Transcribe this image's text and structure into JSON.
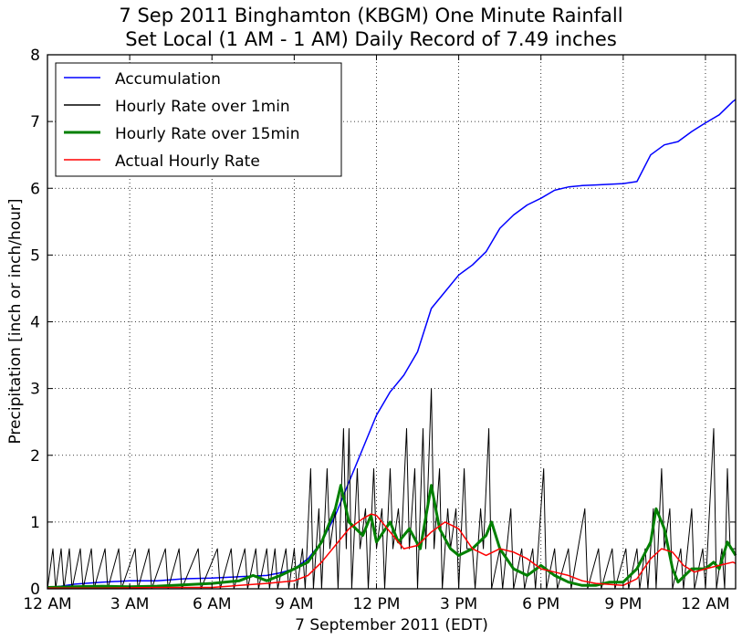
{
  "chart_data": {
    "type": "line",
    "title_lines": [
      "7 Sep 2011 Binghamton (KBGM) One Minute Rainfall",
      "Set Local (1 AM - 1 AM) Daily Record of 7.49 inches"
    ],
    "xlabel": "7 September 2011 (EDT)",
    "ylabel": "Precipitation [inch or inch/hour]",
    "xlim": [
      0,
      25.1
    ],
    "ylim": [
      0,
      8
    ],
    "x_units": "hours after 12 AM, 7 Sep 2011 (EDT)",
    "x_ticks": [
      {
        "x": 0,
        "label": "12 AM"
      },
      {
        "x": 3,
        "label": "3 AM"
      },
      {
        "x": 6,
        "label": "6 AM"
      },
      {
        "x": 9,
        "label": "9 AM"
      },
      {
        "x": 12,
        "label": "12 PM"
      },
      {
        "x": 15,
        "label": "3 PM"
      },
      {
        "x": 18,
        "label": "6 PM"
      },
      {
        "x": 21,
        "label": "9 PM"
      },
      {
        "x": 24,
        "label": "12 AM"
      }
    ],
    "y_ticks": [
      0,
      1,
      2,
      3,
      4,
      5,
      6,
      7,
      8
    ],
    "grid": true,
    "legend_position": "top-left",
    "series": [
      {
        "name": "Accumulation",
        "color": "#0000ff",
        "line_width": 1.5,
        "points": [
          [
            0,
            0.02
          ],
          [
            0.5,
            0.04
          ],
          [
            1,
            0.07
          ],
          [
            2,
            0.1
          ],
          [
            3,
            0.12
          ],
          [
            4,
            0.12
          ],
          [
            5,
            0.15
          ],
          [
            6,
            0.16
          ],
          [
            7,
            0.18
          ],
          [
            8,
            0.2
          ],
          [
            8.5,
            0.24
          ],
          [
            9,
            0.3
          ],
          [
            9.5,
            0.45
          ],
          [
            10,
            0.7
          ],
          [
            10.5,
            1.1
          ],
          [
            11,
            1.6
          ],
          [
            11.5,
            2.1
          ],
          [
            12,
            2.6
          ],
          [
            12.5,
            2.95
          ],
          [
            13,
            3.2
          ],
          [
            13.5,
            3.55
          ],
          [
            14,
            4.2
          ],
          [
            14.5,
            4.45
          ],
          [
            15,
            4.7
          ],
          [
            15.5,
            4.85
          ],
          [
            16,
            5.05
          ],
          [
            16.5,
            5.4
          ],
          [
            17,
            5.6
          ],
          [
            17.5,
            5.75
          ],
          [
            18,
            5.85
          ],
          [
            18.5,
            5.97
          ],
          [
            19,
            6.02
          ],
          [
            19.5,
            6.04
          ],
          [
            20,
            6.05
          ],
          [
            20.5,
            6.06
          ],
          [
            21,
            6.07
          ],
          [
            21.5,
            6.1
          ],
          [
            22,
            6.5
          ],
          [
            22.5,
            6.65
          ],
          [
            23,
            6.7
          ],
          [
            23.5,
            6.85
          ],
          [
            24,
            6.98
          ],
          [
            24.5,
            7.1
          ],
          [
            25,
            7.3
          ],
          [
            25.1,
            7.33
          ]
        ]
      },
      {
        "name": "Hourly Rate over 1min",
        "color": "#000000",
        "line_width": 1,
        "points": [
          [
            0,
            0
          ],
          [
            0.2,
            0.6
          ],
          [
            0.3,
            0
          ],
          [
            0.5,
            0.6
          ],
          [
            0.6,
            0
          ],
          [
            0.8,
            0.6
          ],
          [
            0.9,
            0
          ],
          [
            1.2,
            0.6
          ],
          [
            1.3,
            0
          ],
          [
            1.6,
            0.6
          ],
          [
            1.7,
            0
          ],
          [
            2.1,
            0.6
          ],
          [
            2.2,
            0
          ],
          [
            2.6,
            0.6
          ],
          [
            2.7,
            0
          ],
          [
            3.2,
            0.6
          ],
          [
            3.3,
            0
          ],
          [
            3.7,
            0.6
          ],
          [
            3.8,
            0
          ],
          [
            4.3,
            0.6
          ],
          [
            4.4,
            0
          ],
          [
            4.8,
            0.6
          ],
          [
            4.9,
            0
          ],
          [
            5.5,
            0.6
          ],
          [
            5.6,
            0
          ],
          [
            6.2,
            0.6
          ],
          [
            6.3,
            0
          ],
          [
            6.7,
            0.6
          ],
          [
            6.8,
            0
          ],
          [
            7.2,
            0.6
          ],
          [
            7.3,
            0
          ],
          [
            7.6,
            0.6
          ],
          [
            7.7,
            0
          ],
          [
            8,
            0.6
          ],
          [
            8.1,
            0
          ],
          [
            8.3,
            0.6
          ],
          [
            8.4,
            0
          ],
          [
            8.7,
            0.6
          ],
          [
            8.8,
            0
          ],
          [
            9,
            0.6
          ],
          [
            9.1,
            0
          ],
          [
            9.3,
            0.6
          ],
          [
            9.4,
            0
          ],
          [
            9.6,
            1.8
          ],
          [
            9.7,
            0
          ],
          [
            9.9,
            1.2
          ],
          [
            10,
            0
          ],
          [
            10.2,
            1.8
          ],
          [
            10.3,
            0.6
          ],
          [
            10.5,
            1.2
          ],
          [
            10.6,
            0
          ],
          [
            10.8,
            2.4
          ],
          [
            10.9,
            0.6
          ],
          [
            11,
            2.4
          ],
          [
            11.1,
            0
          ],
          [
            11.3,
            1.8
          ],
          [
            11.4,
            0.6
          ],
          [
            11.6,
            1.2
          ],
          [
            11.7,
            0
          ],
          [
            11.9,
            1.8
          ],
          [
            12,
            0.6
          ],
          [
            12.2,
            1.2
          ],
          [
            12.3,
            0
          ],
          [
            12.5,
            1.8
          ],
          [
            12.6,
            0.6
          ],
          [
            12.8,
            1.2
          ],
          [
            12.9,
            0.6
          ],
          [
            13.1,
            2.4
          ],
          [
            13.2,
            0.6
          ],
          [
            13.4,
            1.8
          ],
          [
            13.5,
            0
          ],
          [
            13.7,
            2.4
          ],
          [
            13.8,
            0.6
          ],
          [
            14,
            3.0
          ],
          [
            14.1,
            0.6
          ],
          [
            14.3,
            1.8
          ],
          [
            14.4,
            0
          ],
          [
            14.6,
            1.2
          ],
          [
            14.7,
            0.6
          ],
          [
            14.9,
            1.2
          ],
          [
            15,
            0
          ],
          [
            15.2,
            1.8
          ],
          [
            15.3,
            0.6
          ],
          [
            15.5,
            0.6
          ],
          [
            15.6,
            0
          ],
          [
            15.8,
            1.2
          ],
          [
            15.9,
            0.6
          ],
          [
            16.1,
            2.4
          ],
          [
            16.2,
            0
          ],
          [
            16.5,
            0.6
          ],
          [
            16.6,
            0
          ],
          [
            16.9,
            1.2
          ],
          [
            17,
            0
          ],
          [
            17.3,
            0.6
          ],
          [
            17.4,
            0
          ],
          [
            17.7,
            0.6
          ],
          [
            17.8,
            0
          ],
          [
            18.1,
            1.8
          ],
          [
            18.2,
            0
          ],
          [
            18.5,
            0.6
          ],
          [
            18.6,
            0
          ],
          [
            19,
            0.6
          ],
          [
            19.1,
            0
          ],
          [
            19.6,
            1.2
          ],
          [
            19.7,
            0
          ],
          [
            20.1,
            0.6
          ],
          [
            20.2,
            0
          ],
          [
            20.6,
            0.6
          ],
          [
            20.7,
            0
          ],
          [
            21.1,
            0.6
          ],
          [
            21.2,
            0
          ],
          [
            21.5,
            0.6
          ],
          [
            21.6,
            0
          ],
          [
            21.8,
            0.6
          ],
          [
            21.9,
            0
          ],
          [
            22.1,
            1.2
          ],
          [
            22.2,
            0
          ],
          [
            22.4,
            1.8
          ],
          [
            22.5,
            0.6
          ],
          [
            22.7,
            1.2
          ],
          [
            22.8,
            0
          ],
          [
            23.1,
            0.6
          ],
          [
            23.2,
            0
          ],
          [
            23.5,
            1.2
          ],
          [
            23.6,
            0
          ],
          [
            23.9,
            0.6
          ],
          [
            24,
            0
          ],
          [
            24.3,
            2.4
          ],
          [
            24.4,
            0
          ],
          [
            24.6,
            0.6
          ],
          [
            24.7,
            0
          ],
          [
            24.8,
            1.8
          ],
          [
            24.9,
            0.6
          ],
          [
            25.1,
            0.6
          ]
        ]
      },
      {
        "name": "Hourly Rate over 15min",
        "color": "#008000",
        "line_width": 3,
        "points": [
          [
            0,
            0.02
          ],
          [
            1,
            0.03
          ],
          [
            2,
            0.04
          ],
          [
            3,
            0.03
          ],
          [
            4,
            0.04
          ],
          [
            5,
            0.06
          ],
          [
            6,
            0.08
          ],
          [
            7,
            0.12
          ],
          [
            7.5,
            0.2
          ],
          [
            8,
            0.12
          ],
          [
            8.5,
            0.2
          ],
          [
            9,
            0.3
          ],
          [
            9.5,
            0.4
          ],
          [
            10,
            0.7
          ],
          [
            10.5,
            1.2
          ],
          [
            10.7,
            1.55
          ],
          [
            11,
            1.0
          ],
          [
            11.5,
            0.8
          ],
          [
            11.8,
            1.1
          ],
          [
            12,
            0.7
          ],
          [
            12.5,
            1.0
          ],
          [
            12.8,
            0.7
          ],
          [
            13.2,
            0.9
          ],
          [
            13.6,
            0.6
          ],
          [
            14,
            1.55
          ],
          [
            14.3,
            0.9
          ],
          [
            14.7,
            0.6
          ],
          [
            15,
            0.5
          ],
          [
            15.5,
            0.6
          ],
          [
            16,
            0.8
          ],
          [
            16.2,
            1.0
          ],
          [
            16.5,
            0.6
          ],
          [
            17,
            0.3
          ],
          [
            17.5,
            0.2
          ],
          [
            18,
            0.35
          ],
          [
            18.5,
            0.2
          ],
          [
            19,
            0.1
          ],
          [
            19.5,
            0.05
          ],
          [
            20,
            0.05
          ],
          [
            20.5,
            0.1
          ],
          [
            21,
            0.1
          ],
          [
            21.5,
            0.3
          ],
          [
            22,
            0.7
          ],
          [
            22.2,
            1.2
          ],
          [
            22.5,
            0.9
          ],
          [
            22.8,
            0.3
          ],
          [
            23,
            0.1
          ],
          [
            23.5,
            0.3
          ],
          [
            24,
            0.3
          ],
          [
            24.3,
            0.4
          ],
          [
            24.5,
            0.3
          ],
          [
            24.8,
            0.7
          ],
          [
            25.1,
            0.5
          ]
        ]
      },
      {
        "name": "Actual Hourly Rate",
        "color": "#ff0000",
        "line_width": 1.5,
        "points": [
          [
            0,
            0.01
          ],
          [
            2,
            0.01
          ],
          [
            4,
            0.02
          ],
          [
            6,
            0.02
          ],
          [
            7,
            0.05
          ],
          [
            8,
            0.08
          ],
          [
            9,
            0.12
          ],
          [
            9.5,
            0.2
          ],
          [
            10,
            0.4
          ],
          [
            10.5,
            0.65
          ],
          [
            11,
            0.9
          ],
          [
            11.5,
            1.05
          ],
          [
            11.8,
            1.12
          ],
          [
            12,
            1.1
          ],
          [
            12.5,
            0.85
          ],
          [
            13,
            0.6
          ],
          [
            13.5,
            0.65
          ],
          [
            14,
            0.85
          ],
          [
            14.5,
            1.0
          ],
          [
            15,
            0.9
          ],
          [
            15.5,
            0.6
          ],
          [
            16,
            0.5
          ],
          [
            16.5,
            0.6
          ],
          [
            17,
            0.55
          ],
          [
            17.5,
            0.45
          ],
          [
            18,
            0.3
          ],
          [
            18.5,
            0.25
          ],
          [
            19,
            0.2
          ],
          [
            19.5,
            0.12
          ],
          [
            20,
            0.08
          ],
          [
            21,
            0.05
          ],
          [
            21.5,
            0.15
          ],
          [
            22,
            0.45
          ],
          [
            22.4,
            0.6
          ],
          [
            22.8,
            0.55
          ],
          [
            23.2,
            0.35
          ],
          [
            23.6,
            0.25
          ],
          [
            24,
            0.3
          ],
          [
            24.5,
            0.35
          ],
          [
            25,
            0.4
          ],
          [
            25.1,
            0.38
          ]
        ]
      }
    ]
  }
}
